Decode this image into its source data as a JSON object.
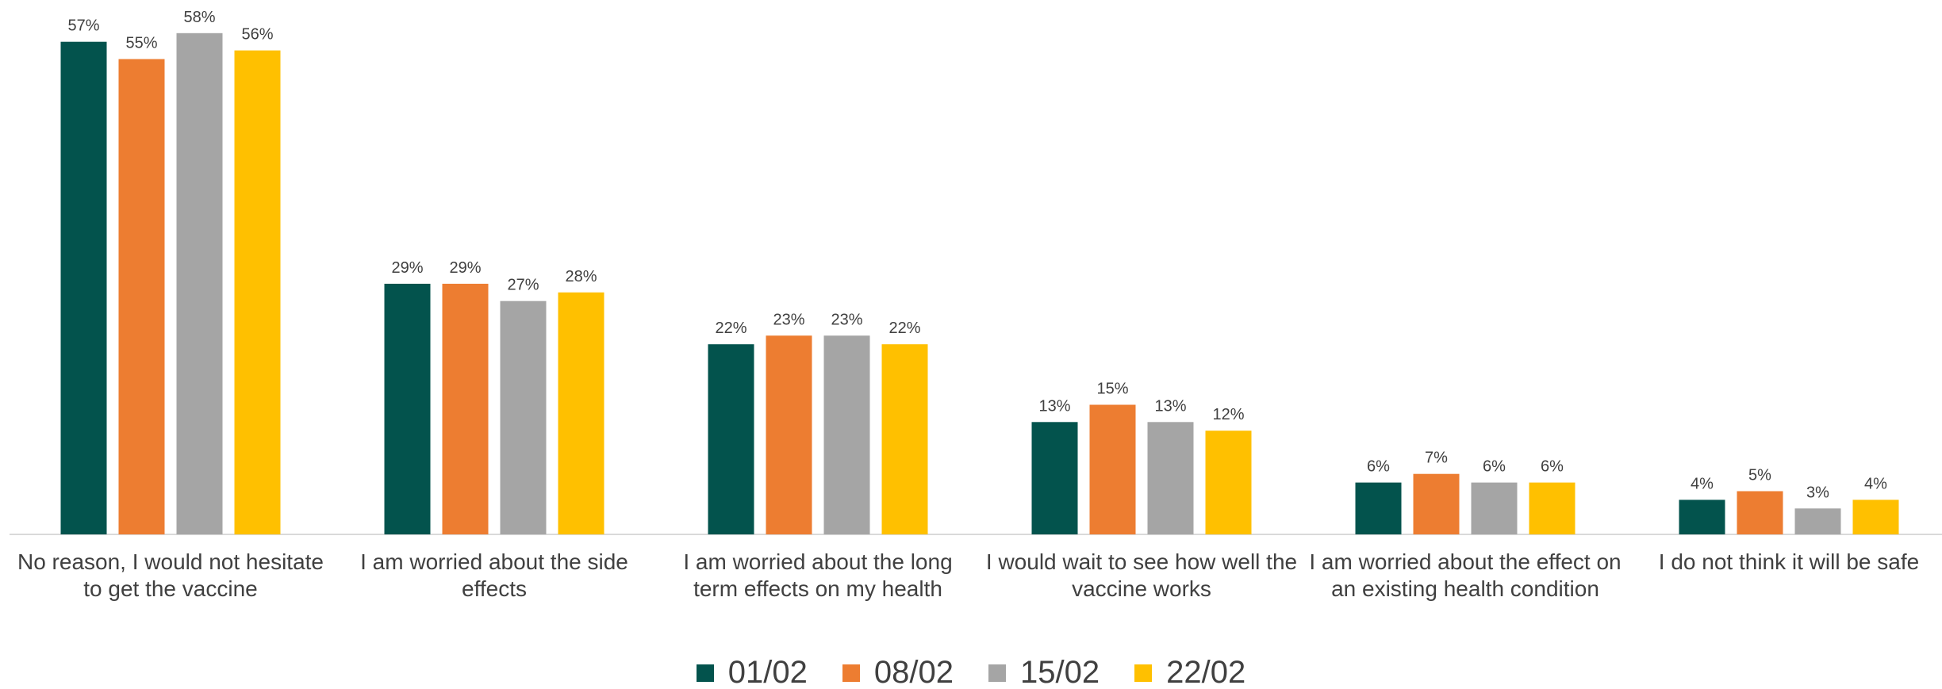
{
  "chart_data": {
    "type": "bar",
    "categories": [
      "No reason, I would not hesitate to get the vaccine",
      "I am worried about the side effects",
      "I am worried about the long term effects on my health",
      "I would wait to see how well the vaccine works",
      "I am worried about the effect on an existing health condition",
      "I do not think it will be safe"
    ],
    "series": [
      {
        "name": "01/02",
        "color": "#03534d",
        "values": [
          57,
          29,
          22,
          13,
          6,
          4
        ],
        "value_labels": [
          "57%",
          "29%",
          "22%",
          "13%",
          "6%",
          "4%"
        ]
      },
      {
        "name": "08/02",
        "color": "#ed7d31",
        "values": [
          55,
          29,
          23,
          15,
          7,
          5
        ],
        "value_labels": [
          "55%",
          "29%",
          "23%",
          "15%",
          "7%",
          "5%"
        ]
      },
      {
        "name": "15/02",
        "color": "#a5a5a5",
        "values": [
          58,
          27,
          23,
          13,
          6,
          3
        ],
        "value_labels": [
          "58%",
          "27%",
          "23%",
          "13%",
          "6%",
          "3%"
        ]
      },
      {
        "name": "22/02",
        "color": "#ffc000",
        "values": [
          56,
          28,
          22,
          12,
          6,
          4
        ],
        "value_labels": [
          "56%",
          "28%",
          "22%",
          "12%",
          "6%",
          "4%"
        ]
      }
    ],
    "legend": "bottom"
  }
}
